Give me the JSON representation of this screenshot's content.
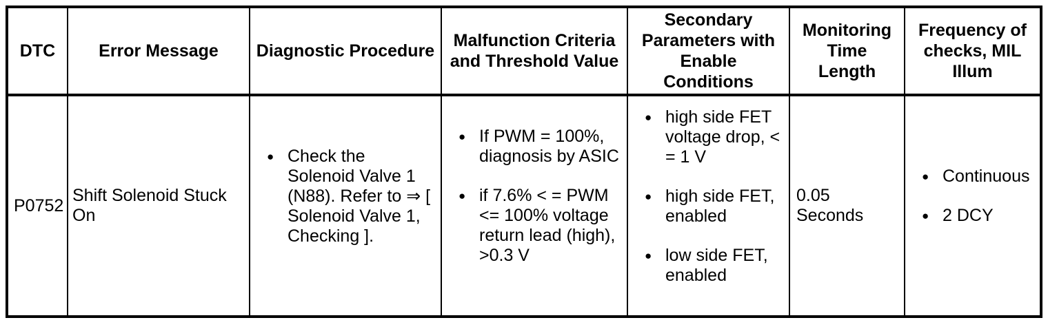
{
  "table": {
    "bullet_glyph": "●",
    "columns": [
      {
        "label": "DTC"
      },
      {
        "label": "Error Message"
      },
      {
        "label": "Diagnostic Procedure"
      },
      {
        "label": "Malfunction Criteria and Threshold Value"
      },
      {
        "label": "Secondary Parameters with Enable Conditions"
      },
      {
        "label": "Monitoring Time Length"
      },
      {
        "label": "Frequency of checks, MIL Illum"
      }
    ],
    "row": {
      "dtc": "P0752",
      "error_message": "Shift Solenoid Stuck On",
      "diagnostic_procedure": [
        "Check the Solenoid Valve 1 (N88). Refer to ⇒ [ Solenoid Valve 1, Checking ]."
      ],
      "malfunction_criteria": [
        "If PWM = 100%, diagnosis by ASIC",
        "if 7.6% < = PWM <= 100% voltage return lead (high), >0.3 V"
      ],
      "secondary_parameters": [
        "high side FET voltage drop, < = 1 V",
        "high side FET, enabled",
        "low side FET, enabled"
      ],
      "monitoring_time": "0.05 Seconds",
      "frequency": [
        "Continuous",
        "2 DCY"
      ]
    },
    "colors": {
      "border": "#000000",
      "background": "#ffffff",
      "text": "#000000"
    }
  }
}
